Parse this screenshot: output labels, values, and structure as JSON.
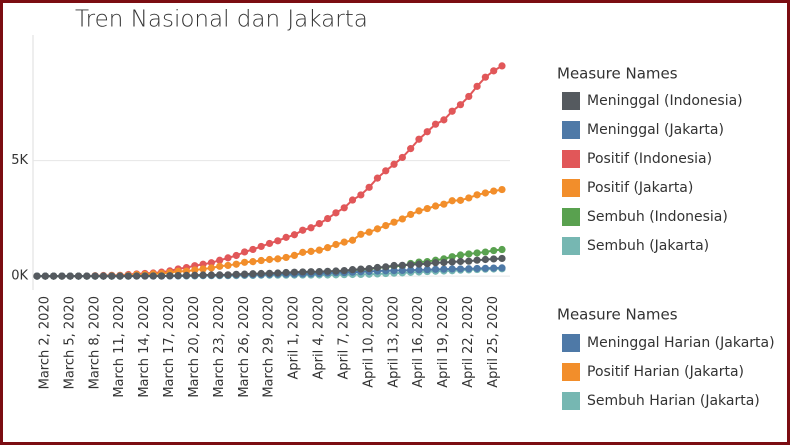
{
  "chart_data": {
    "type": "line",
    "title": "Tren Nasional dan Jakarta",
    "categories": [
      "March 2, 2020",
      null,
      null,
      "March 5, 2020",
      null,
      null,
      "March 8, 2020",
      null,
      null,
      "March 11, 2020",
      null,
      null,
      "March 14, 2020",
      null,
      null,
      "March 17, 2020",
      null,
      null,
      "March 20, 2020",
      null,
      null,
      "March 23, 2020",
      null,
      null,
      "March 26, 2020",
      null,
      null,
      "March 29, 2020",
      null,
      null,
      "April 1, 2020",
      null,
      null,
      "April 4, 2020",
      null,
      null,
      "April 7, 2020",
      null,
      null,
      "April 10, 2020",
      null,
      null,
      "April 13, 2020",
      null,
      null,
      "April 16, 2020",
      null,
      null,
      "April 19, 2020",
      null,
      null,
      "April 22, 2020",
      null,
      null,
      "April 25, 2020",
      null,
      null
    ],
    "ylim": [
      -600,
      10000
    ],
    "yticks": [
      {
        "value": 0,
        "label": "0K"
      },
      {
        "value": 5000,
        "label": "5K"
      }
    ],
    "grid": true,
    "legend_title": "Measure Names",
    "series": [
      {
        "name": "Meninggal (Indonesia)",
        "color": "#555a5f",
        "values": [
          0,
          0,
          0,
          0,
          0,
          0,
          0,
          0,
          0,
          1,
          1,
          4,
          5,
          5,
          5,
          7,
          19,
          25,
          32,
          38,
          48,
          49,
          55,
          58,
          78,
          87,
          102,
          114,
          122,
          136,
          157,
          170,
          181,
          191,
          198,
          209,
          221,
          240,
          280,
          306,
          327,
          373,
          399,
          459,
          469,
          496,
          520,
          535,
          582,
          590,
          616,
          635,
          647,
          689,
          720,
          743,
          765
        ]
      },
      {
        "name": "Meninggal (Jakarta)",
        "color": "#4e79a7",
        "values": [
          0,
          0,
          0,
          0,
          0,
          0,
          0,
          0,
          0,
          0,
          1,
          2,
          3,
          3,
          3,
          4,
          9,
          12,
          18,
          23,
          32,
          32,
          35,
          37,
          46,
          53,
          55,
          62,
          71,
          83,
          84,
          90,
          95,
          102,
          111,
          133,
          149,
          154,
          170,
          190,
          201,
          220,
          231,
          238,
          247,
          257,
          271,
          280,
          294,
          301,
          312,
          312,
          320,
          331,
          339,
          350,
          356
        ]
      },
      {
        "name": "Positif (Indonesia)",
        "color": "#e15759",
        "values": [
          2,
          2,
          2,
          2,
          4,
          4,
          6,
          19,
          27,
          34,
          34,
          69,
          96,
          117,
          134,
          172,
          227,
          311,
          369,
          450,
          514,
          579,
          686,
          790,
          893,
          1046,
          1155,
          1285,
          1414,
          1528,
          1677,
          1790,
          1986,
          2092,
          2273,
          2491,
          2738,
          2956,
          3293,
          3512,
          3842,
          4241,
          4557,
          4839,
          5136,
          5516,
          5923,
          6248,
          6575,
          6760,
          7135,
          7418,
          7775,
          8211,
          8607,
          8882,
          9096
        ]
      },
      {
        "name": "Positif (Jakarta)",
        "color": "#f28e2b",
        "values": [
          0,
          0,
          0,
          0,
          2,
          2,
          3,
          10,
          12,
          21,
          21,
          35,
          66,
          69,
          98,
          115,
          158,
          210,
          215,
          267,
          307,
          353,
          424,
          463,
          515,
          598,
          627,
          675,
          720,
          747,
          808,
          897,
          1028,
          1071,
          1124,
          1232,
          1369,
          1471,
          1552,
          1810,
          1903,
          2044,
          2186,
          2335,
          2474,
          2670,
          2823,
          2924,
          3033,
          3112,
          3261,
          3279,
          3383,
          3517,
          3598,
          3681,
          3746
        ]
      },
      {
        "name": "Sembuh (Indonesia)",
        "color": "#59a14f",
        "values": [
          0,
          0,
          0,
          0,
          0,
          0,
          0,
          0,
          0,
          0,
          0,
          3,
          8,
          8,
          8,
          9,
          11,
          15,
          16,
          20,
          29,
          30,
          30,
          31,
          35,
          46,
          59,
          64,
          75,
          81,
          103,
          112,
          134,
          150,
          164,
          192,
          204,
          222,
          252,
          282,
          286,
          359,
          380,
          426,
          446,
          548,
          607,
          631,
          686,
          747,
          842,
          913,
          960,
          1002,
          1042,
          1107,
          1151
        ]
      },
      {
        "name": "Sembuh (Jakarta)",
        "color": "#76b7b2",
        "values": [
          0,
          0,
          0,
          0,
          0,
          0,
          0,
          0,
          0,
          0,
          0,
          0,
          3,
          3,
          3,
          3,
          5,
          8,
          8,
          8,
          16,
          20,
          20,
          20,
          22,
          29,
          31,
          39,
          39,
          41,
          41,
          43,
          46,
          47,
          49,
          50,
          54,
          64,
          71,
          75,
          82,
          94,
          113,
          129,
          142,
          163,
          179,
          198,
          212,
          222,
          234,
          258,
          269,
          284,
          300,
          309,
          316
        ]
      }
    ],
    "legend2": {
      "title": "Measure Names",
      "items": [
        {
          "name": "Meninggal Harian (Jakarta)",
          "color": "#4e79a7"
        },
        {
          "name": "Positif Harian (Jakarta)",
          "color": "#f28e2b"
        },
        {
          "name": "Sembuh Harian (Jakarta)",
          "color": "#76b7b2"
        }
      ]
    }
  }
}
